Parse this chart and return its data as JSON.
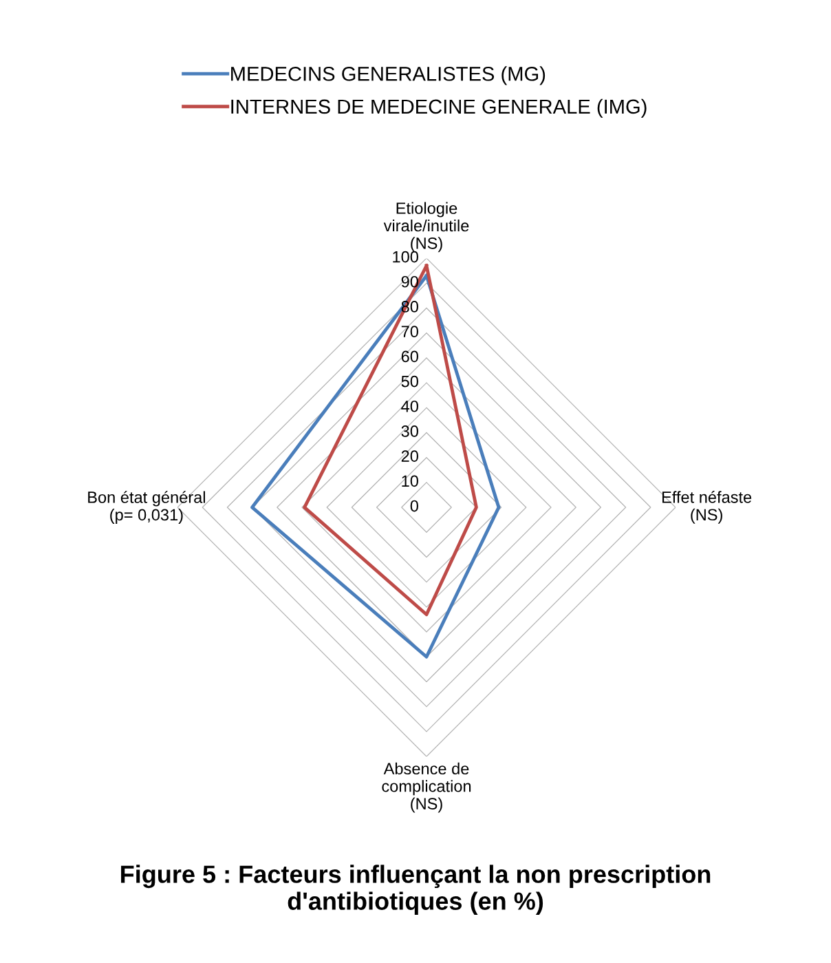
{
  "chart_data": {
    "type": "radar",
    "title": "Figure 5 : Facteurs influençant la non prescription\nd'antibiotiques (en %)",
    "categories": [
      "Etiologie\nvirale/inutile\n(NS)",
      "Effet néfaste\n(NS)",
      "Absence de\ncomplication\n(NS)",
      "Bon état général\n(p= 0,031)"
    ],
    "series": [
      {
        "name": "MEDECINS GENERALISTES (MG)",
        "color": "#4a7ebb",
        "values": [
          93,
          29,
          60,
          70
        ]
      },
      {
        "name": "INTERNES DE MEDECINE GENERALE (IMG)",
        "color": "#be4b48",
        "values": [
          97,
          20,
          43,
          49
        ]
      }
    ],
    "ylim": [
      0,
      100
    ],
    "yticks": [
      0,
      10,
      20,
      30,
      40,
      50,
      60,
      70,
      80,
      90,
      100
    ],
    "grid": true,
    "legend": "top"
  }
}
